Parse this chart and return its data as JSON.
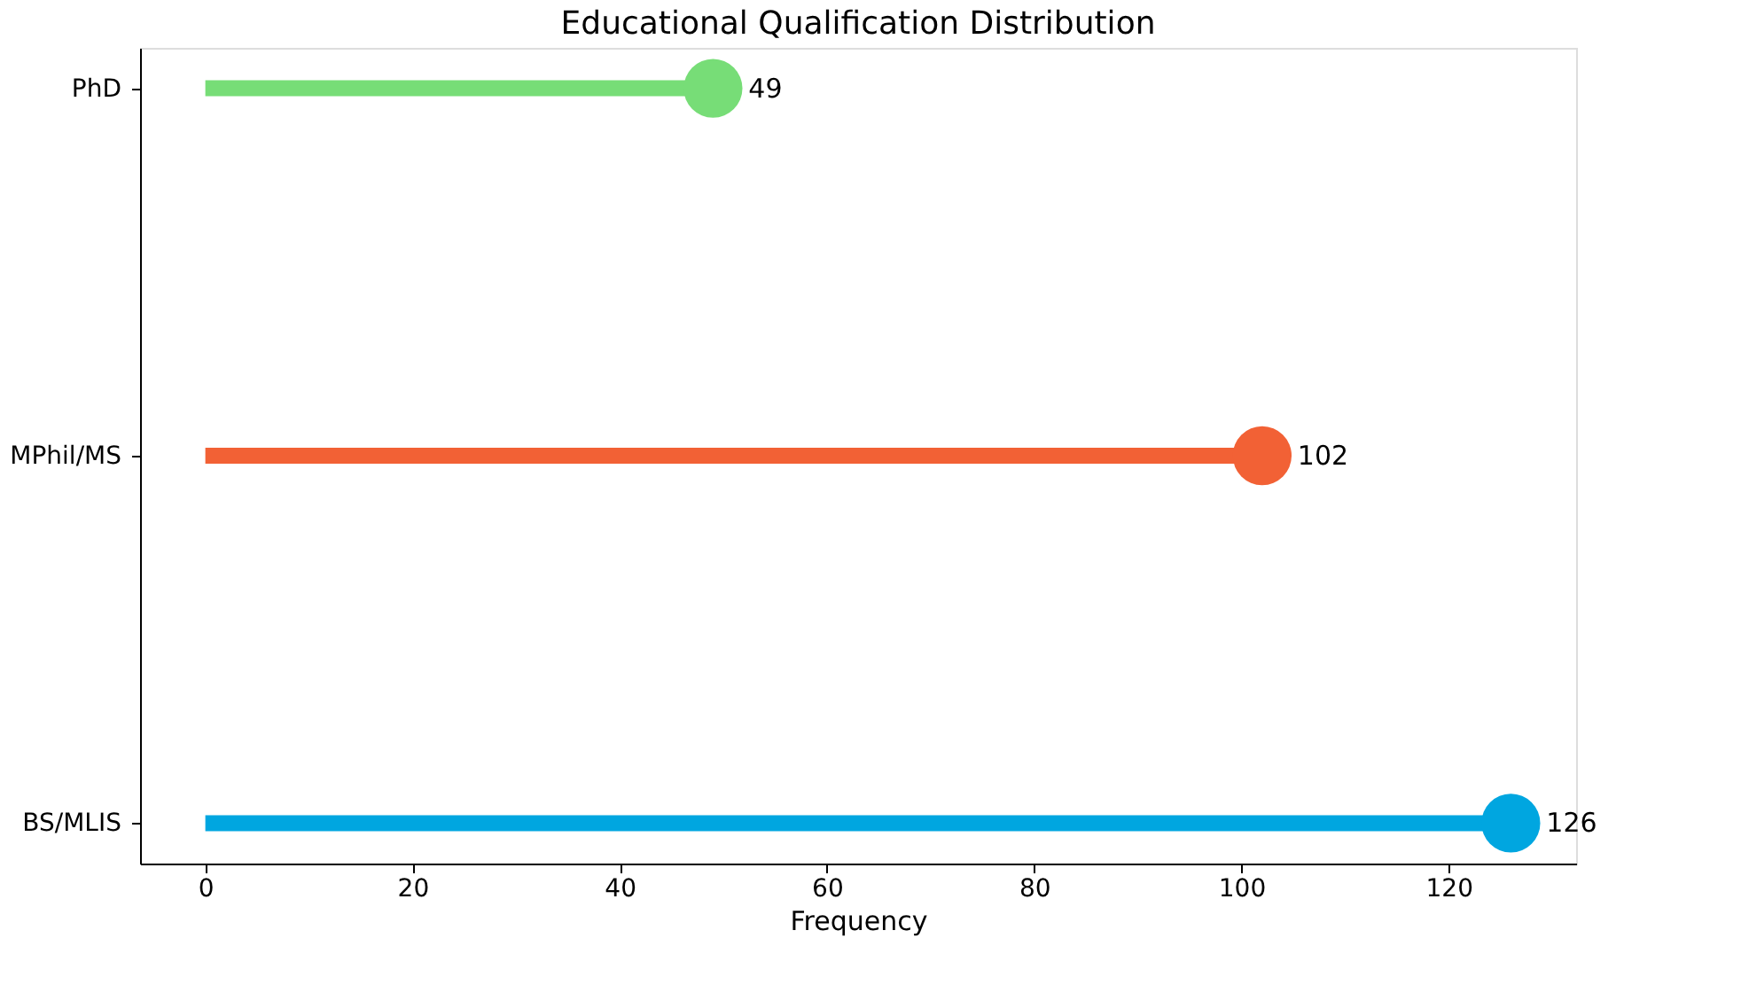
{
  "chart_data": {
    "type": "lollipop",
    "title": "Educational Qualification Distribution",
    "xlabel": "Frequency",
    "orientation": "horizontal",
    "categories": [
      "PhD",
      "MPhil/MS",
      "BS/MLIS"
    ],
    "values": [
      49,
      102,
      126
    ],
    "colors": [
      "#77dd77",
      "#f26135",
      "#00a6e0"
    ],
    "xlim": [
      -6.3,
      132.3
    ],
    "xticks": [
      0,
      20,
      40,
      60,
      80,
      100,
      120
    ],
    "data_labels": true
  }
}
